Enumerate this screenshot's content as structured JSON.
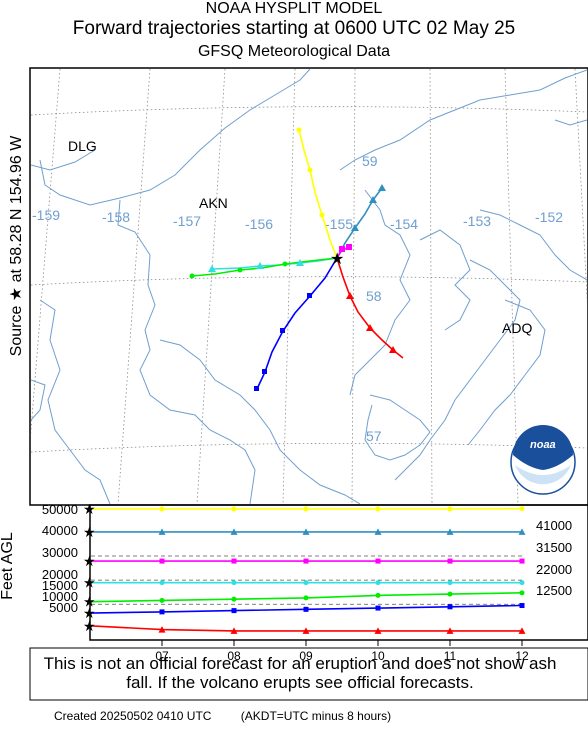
{
  "header": {
    "line1": "NOAA HYSPLIT MODEL",
    "line2": "Forward trajectories starting at 0600 UTC 02 May 25",
    "line3": "GFSQ Meteorological Data"
  },
  "source_label": "Source ★ at 58.28 N 154.96 W",
  "map": {
    "place_labels": [
      "DLG",
      "AKN",
      "ADQ"
    ],
    "longitude_labels": [
      "-159",
      "-158",
      "-157",
      "-156",
      "-155",
      "-154",
      "-153",
      "-152"
    ],
    "latitude_labels": [
      "59",
      "58",
      "57"
    ],
    "logo_text": "noaa",
    "colors": {
      "coast": "#6f9fcf",
      "grid": "#777777",
      "source": "#000000"
    }
  },
  "vertical": {
    "axis_label": "Feet AGL",
    "y_ticks": [
      "50000",
      "40000",
      "30000",
      "20000",
      "15000",
      "10000",
      "5000"
    ],
    "right_labels": [
      "41000",
      "31500",
      "22000",
      "12500"
    ],
    "x_ticks": [
      "07",
      "08",
      "09",
      "10",
      "11",
      "12"
    ]
  },
  "chart_data": {
    "type": "line",
    "title": "Forward trajectories starting at 0600 UTC 02 May 25",
    "ylabel": "Feet AGL",
    "x_hours_utc": [
      6,
      7,
      8,
      9,
      10,
      11,
      12
    ],
    "series": [
      {
        "color": "#ffff00",
        "values": [
          50000,
          50000,
          50000,
          50000,
          50000,
          50000,
          50100
        ]
      },
      {
        "color": "#3090c0",
        "values": [
          41000,
          41000,
          41000,
          41000,
          41000,
          41000,
          41000
        ]
      },
      {
        "color": "#ff00ff",
        "values": [
          29500,
          29500,
          29500,
          29500,
          29500,
          29500,
          29500
        ]
      },
      {
        "color": "#30e0e0",
        "values": [
          21000,
          21000,
          21000,
          21000,
          21000,
          21000,
          21000
        ]
      },
      {
        "color": "#00ee00",
        "values": [
          13500,
          14000,
          14500,
          15000,
          16000,
          16500,
          17000
        ]
      },
      {
        "color": "#0000ff",
        "values": [
          9000,
          9500,
          10000,
          10500,
          11000,
          11500,
          12000
        ]
      },
      {
        "color": "#ff0000",
        "values": [
          4000,
          2500,
          2000,
          2000,
          2000,
          2000,
          2000
        ]
      }
    ]
  },
  "notice": "This is not an official forecast for an eruption and does not show ash fall. If the volcano erupts see official forecasts.",
  "footer": {
    "created": "Created 20250502 0410 UTC",
    "akdt": "(AKDT=UTC minus 8 hours)"
  }
}
